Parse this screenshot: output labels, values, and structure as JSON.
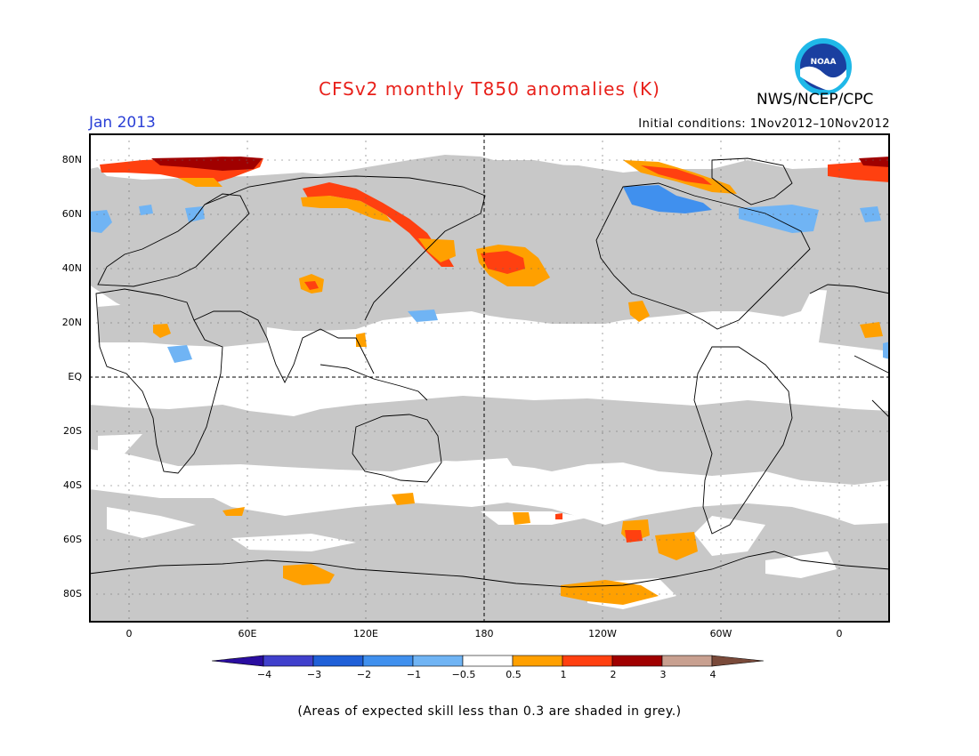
{
  "title": "CFSv2 monthly T850 anomalies (K)",
  "agency": "NWS/NCEP/CPC",
  "logo_text": "NOAA",
  "forecast_month": "Jan 2013",
  "initial_conditions": "Initial conditions: 1Nov2012–10Nov2012",
  "footnote": "(Areas of expected skill less than 0.3 are shaded in grey.)",
  "latitude_labels": [
    "80N",
    "60N",
    "40N",
    "20N",
    "EQ",
    "20S",
    "40S",
    "60S",
    "80S"
  ],
  "longitude_labels": [
    "0",
    "60E",
    "120E",
    "180",
    "120W",
    "60W",
    "0"
  ],
  "colorbar": {
    "labels": [
      "−4",
      "−3",
      "−2",
      "−1",
      "−0.5",
      "0.5",
      "1",
      "2",
      "3",
      "4"
    ],
    "colors": [
      "#2a0da0",
      "#4040cc",
      "#2060d8",
      "#4090ee",
      "#70b4f4",
      "#ffffff",
      "#ffa000",
      "#ff4010",
      "#a00000",
      "#c8a090",
      "#7a4a3a"
    ]
  },
  "colors": {
    "title": "#e8201a",
    "month": "#2a3fd6",
    "low_skill_grey": "#c8c8c8"
  }
}
